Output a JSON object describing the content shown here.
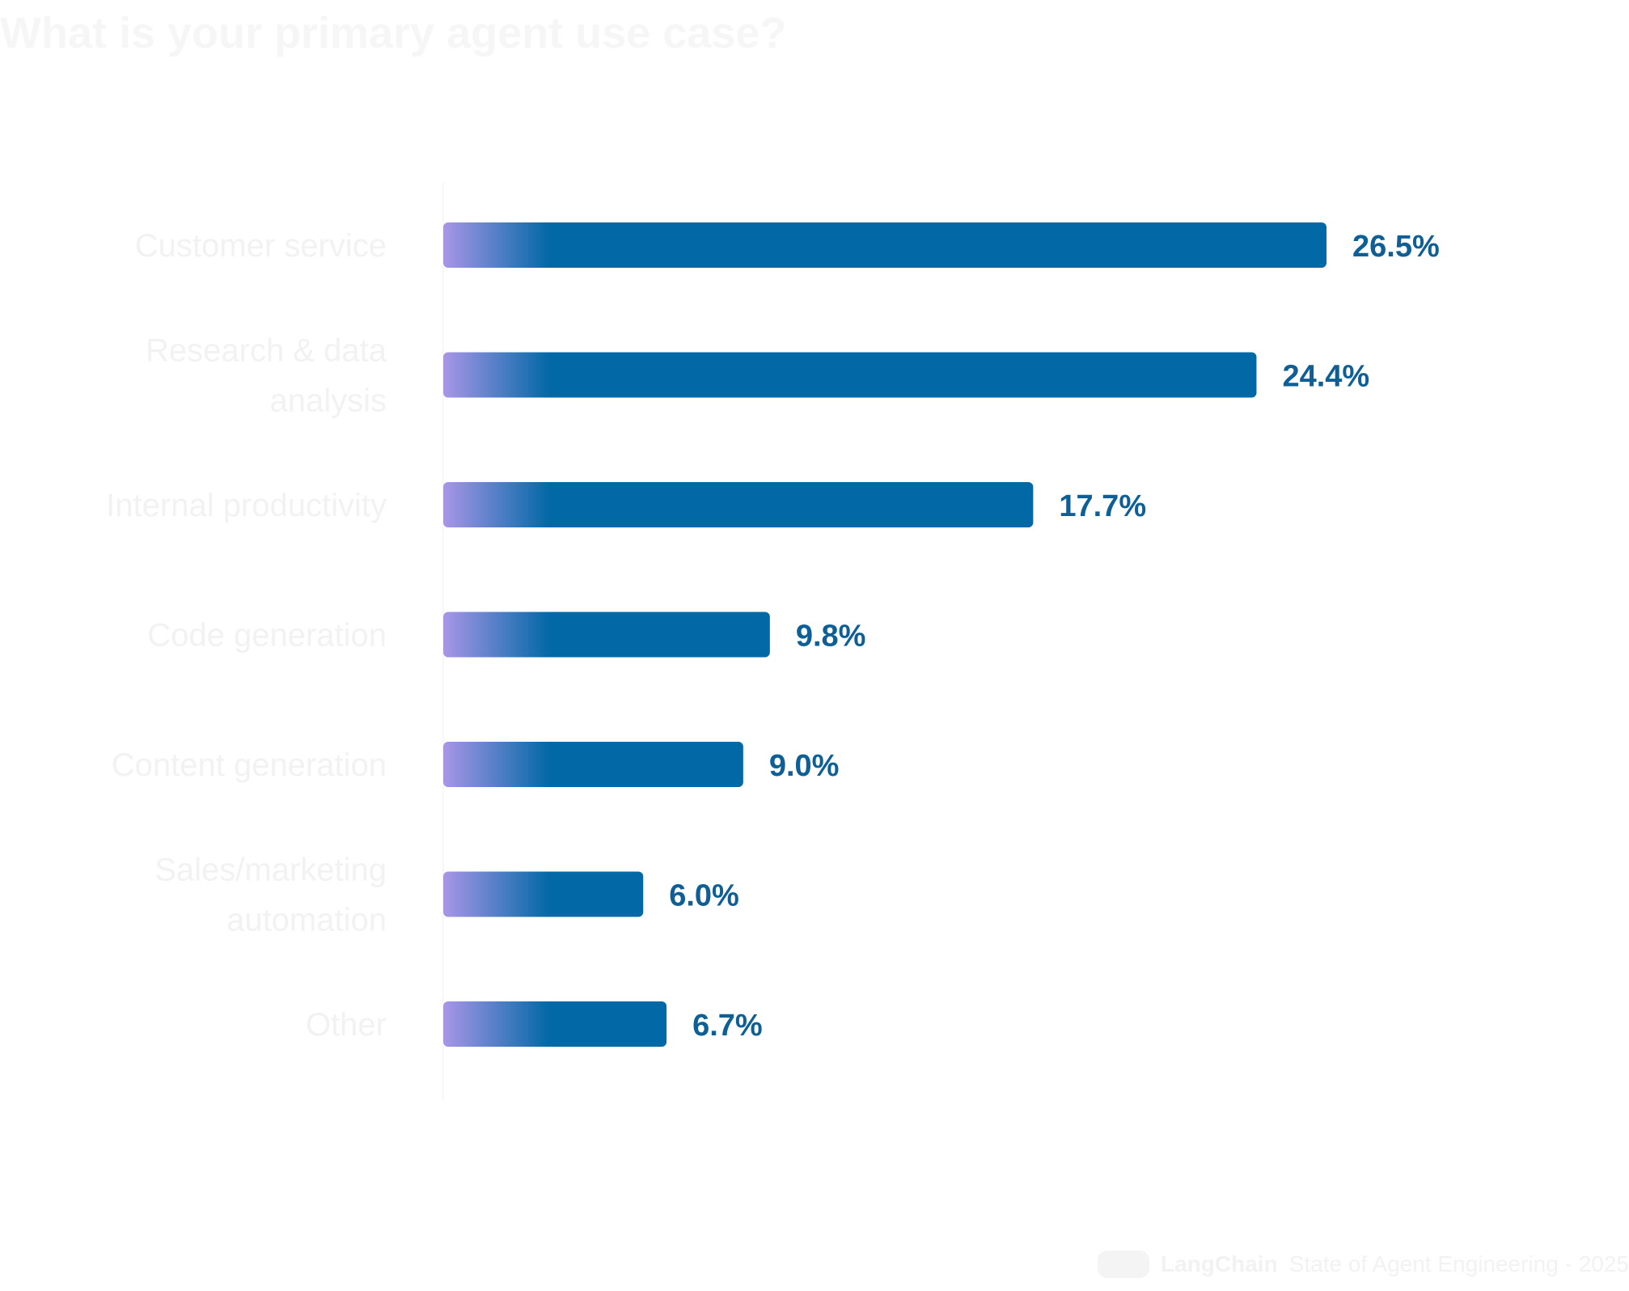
{
  "title": "What is your primary agent use case?",
  "footer": {
    "logo_icon": "langchain-logo-icon",
    "brand": "LangChain",
    "report": "State of Agent Engineering - 2025"
  },
  "colors": {
    "bar": "#0369a6",
    "bar_gradient_start": "#a996e8",
    "value_label": "#0d5f96",
    "category_label": "#f2f2f2",
    "axis": "#f7f7f7",
    "title": "#f6f6f6"
  },
  "chart_data": {
    "type": "bar",
    "orientation": "horizontal",
    "categories": [
      [
        "Customer service"
      ],
      [
        "Research & data",
        "analysis"
      ],
      [
        "Internal productivity"
      ],
      [
        "Code generation"
      ],
      [
        "Content generation"
      ],
      [
        "Sales/marketing",
        "automation"
      ],
      [
        "Other"
      ]
    ],
    "values": [
      26.5,
      24.4,
      17.7,
      9.8,
      9.0,
      6.0,
      6.7
    ],
    "value_labels": [
      "26.5%",
      "24.4%",
      "17.7%",
      "9.8%",
      "9.0%",
      "6.0%",
      "6.7%"
    ],
    "xlim": [
      0,
      26.5
    ],
    "grid": false,
    "legend": "none"
  }
}
